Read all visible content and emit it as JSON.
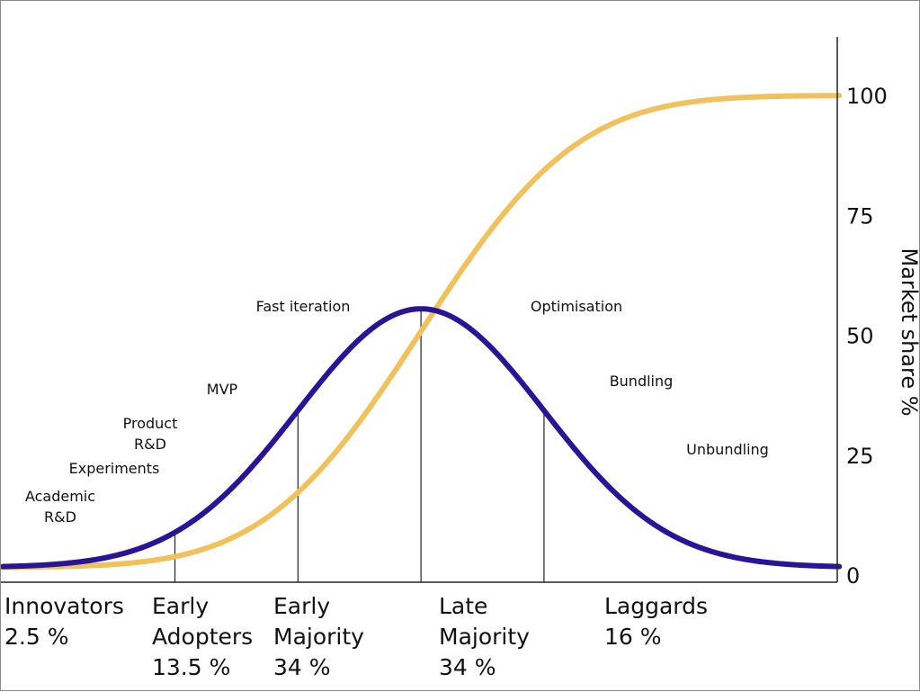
{
  "chart_data": {
    "type": "line",
    "title": "",
    "ylabel": "Market share %",
    "ylim": [
      0,
      100
    ],
    "y_ticks": [
      "0",
      "25",
      "50",
      "75",
      "100"
    ],
    "grid": false,
    "colors": {
      "adoption_curve": "#2a1496",
      "market_share_curve": "#efc25e"
    },
    "series": [
      {
        "type": "bell",
        "mu": 3.4,
        "sigma": 1.0,
        "peak": 55.5,
        "baseline": 1.6
      },
      {
        "type": "cumulative",
        "mu": 3.4,
        "sigma": 1.0,
        "max": 100,
        "min": 1.6
      }
    ],
    "segments": [
      {
        "name": "Innovators",
        "share": "2.5 %"
      },
      {
        "name": "Early Adopters",
        "share": "13.5 %"
      },
      {
        "name": "Early Majority",
        "share": "34 %"
      },
      {
        "name": "Late Majority",
        "share": "34 %"
      },
      {
        "name": "Laggards",
        "share": "16 %"
      }
    ],
    "annotations": [
      "Academic R&D",
      "Experiments",
      "Product R&D",
      "MVP",
      "Fast iteration",
      "Optimisation",
      "Bundling",
      "Unbundling"
    ]
  },
  "segment_labels": [
    {
      "lines": [
        "Innovators",
        "2.5 %"
      ]
    },
    {
      "lines": [
        "Early",
        "Adopters",
        "13.5 %"
      ]
    },
    {
      "lines": [
        "Early",
        "Majority",
        "34 %"
      ]
    },
    {
      "lines": [
        "Late",
        "Majority",
        "34 %"
      ]
    },
    {
      "lines": [
        "Laggards",
        "16 %"
      ]
    }
  ],
  "annotation_labels": [
    {
      "lines": [
        "Academic",
        "R&D"
      ]
    },
    {
      "lines": [
        "Experiments"
      ]
    },
    {
      "lines": [
        "Product",
        "R&D"
      ]
    },
    {
      "lines": [
        "MVP"
      ]
    },
    {
      "lines": [
        "Fast iteration"
      ]
    },
    {
      "lines": [
        "Optimisation"
      ]
    },
    {
      "lines": [
        "Bundling"
      ]
    },
    {
      "lines": [
        "Unbundling"
      ]
    }
  ]
}
